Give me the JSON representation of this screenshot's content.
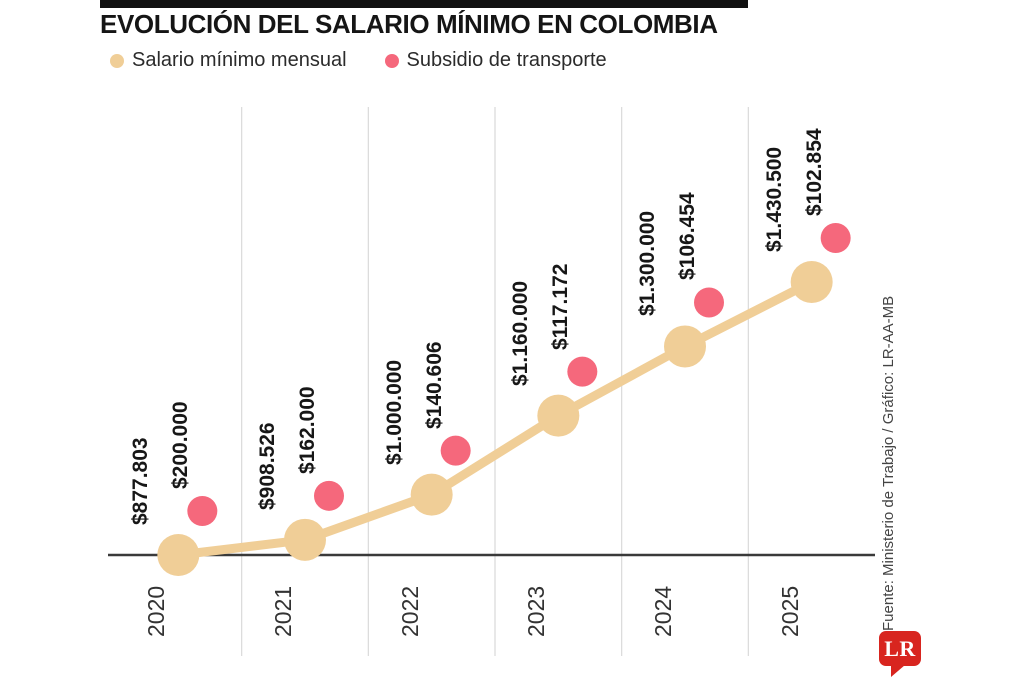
{
  "header": {
    "title": "EVOLUCIÓN DEL SALARIO MÍNIMO EN COLOMBIA",
    "legend": [
      {
        "label": "Salario mínimo mensual",
        "color": "#f0ce97"
      },
      {
        "label": "Subsidio de transporte",
        "color": "#f5687c"
      }
    ]
  },
  "chart_data": {
    "type": "line",
    "title": "EVOLUCIÓN DEL SALARIO MÍNIMO EN COLOMBIA",
    "categories": [
      "2020",
      "2021",
      "2022",
      "2023",
      "2024",
      "2025"
    ],
    "series": [
      {
        "name": "Salario mínimo mensual",
        "color": "#f0ce97",
        "marker": "circle-large",
        "values": [
          877803,
          908526,
          1000000,
          1160000,
          1300000,
          1430500
        ],
        "point_labels": [
          "$877.803",
          "$908.526",
          "$1.000.000",
          "$1.160.000",
          "$1.300.000",
          "$1.430.500"
        ]
      },
      {
        "name": "Subsidio de transporte",
        "color": "#f5687c",
        "marker": "circle-small",
        "values": [
          200000,
          162000,
          140606,
          117172,
          106454,
          102854
        ],
        "point_labels": [
          "$200.000",
          "$162.000",
          "$140.606",
          "$117.172",
          "$106.454",
          "$102.854"
        ]
      }
    ],
    "xlabel": "",
    "ylabel": "",
    "grid": "vertical-between-categories",
    "legend_position": "top-left",
    "axis_baseline_value": 877803,
    "currency": "COP"
  },
  "footer": {
    "source": "Fuente: Ministerio de Trabajo / Gráfico: LR-AA-MB",
    "logo_text": "LR",
    "logo_color": "#d8251f"
  },
  "colors": {
    "salary_series": "#f0ce97",
    "subsidy_series": "#f5687c",
    "axis_line": "#3a3a3a",
    "grid_line": "#d9d9d9",
    "label_text": "#171717"
  }
}
